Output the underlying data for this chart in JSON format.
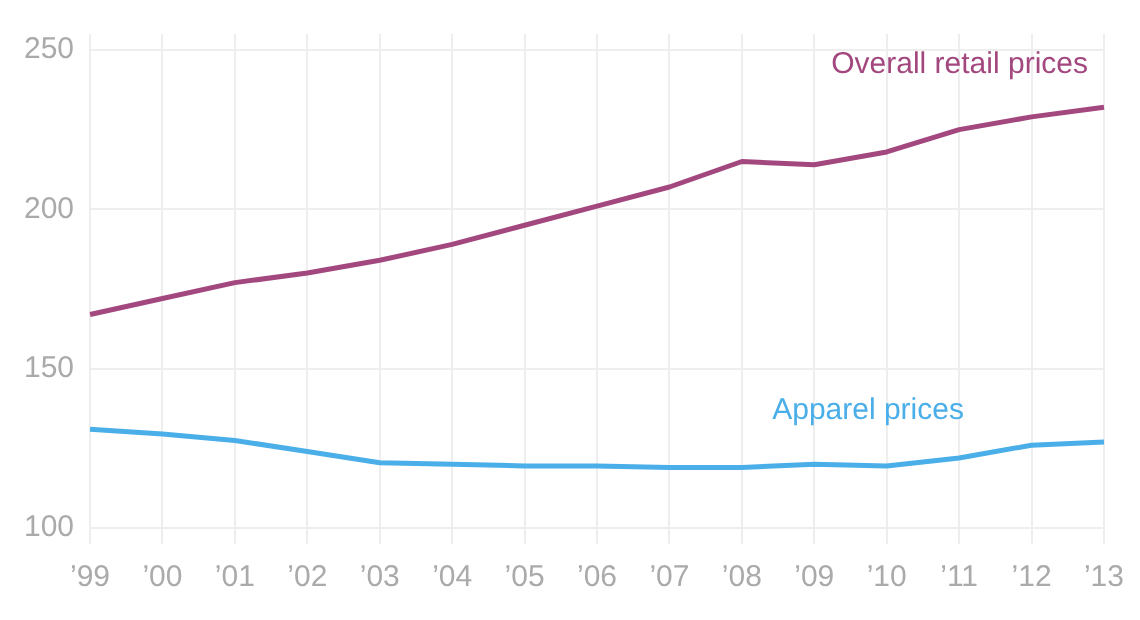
{
  "chart_data": {
    "type": "line",
    "categories": [
      "’99",
      "’00",
      "’01",
      "’02",
      "’03",
      "’04",
      "’05",
      "’06",
      "’07",
      "’08",
      "’09",
      "’10",
      "’11",
      "’12",
      "’13"
    ],
    "series": [
      {
        "name": "Overall retail prices",
        "color": "#a3487f",
        "values": [
          167,
          172,
          177,
          180,
          184,
          189,
          195,
          201,
          207,
          215,
          214,
          218,
          225,
          229,
          232
        ]
      },
      {
        "name": "Apparel prices",
        "color": "#4aaee8",
        "values": [
          131,
          129.5,
          127.5,
          124,
          120.5,
          120,
          119.5,
          119.5,
          119,
          119,
          120,
          119.5,
          122,
          126,
          127
        ]
      }
    ],
    "ylim": [
      95,
      255
    ],
    "yticks": [
      100,
      150,
      200,
      250
    ],
    "grid": true,
    "legend": false,
    "marker": "none",
    "line_style": "solid"
  }
}
